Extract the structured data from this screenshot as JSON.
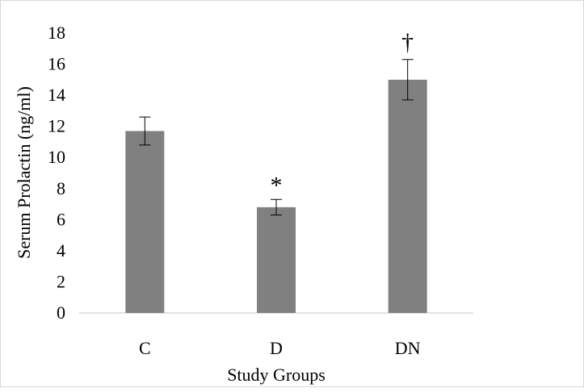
{
  "chart_data": {
    "type": "bar",
    "categories": [
      "C",
      "D",
      "DN"
    ],
    "values": [
      11.7,
      6.8,
      15.0
    ],
    "errors": [
      0.9,
      0.5,
      1.3
    ],
    "annotations": [
      "",
      "*",
      "†"
    ],
    "xlabel": "Study Groups",
    "ylabel": "Serum Prolactin (ng/ml)",
    "ylim": [
      0,
      18
    ],
    "yticks": [
      0,
      2,
      4,
      6,
      8,
      10,
      12,
      14,
      16,
      18
    ],
    "grid": false,
    "bar_color": "#808080",
    "error_bar_color": "#000000",
    "axis_color": "#d9d9d9"
  }
}
